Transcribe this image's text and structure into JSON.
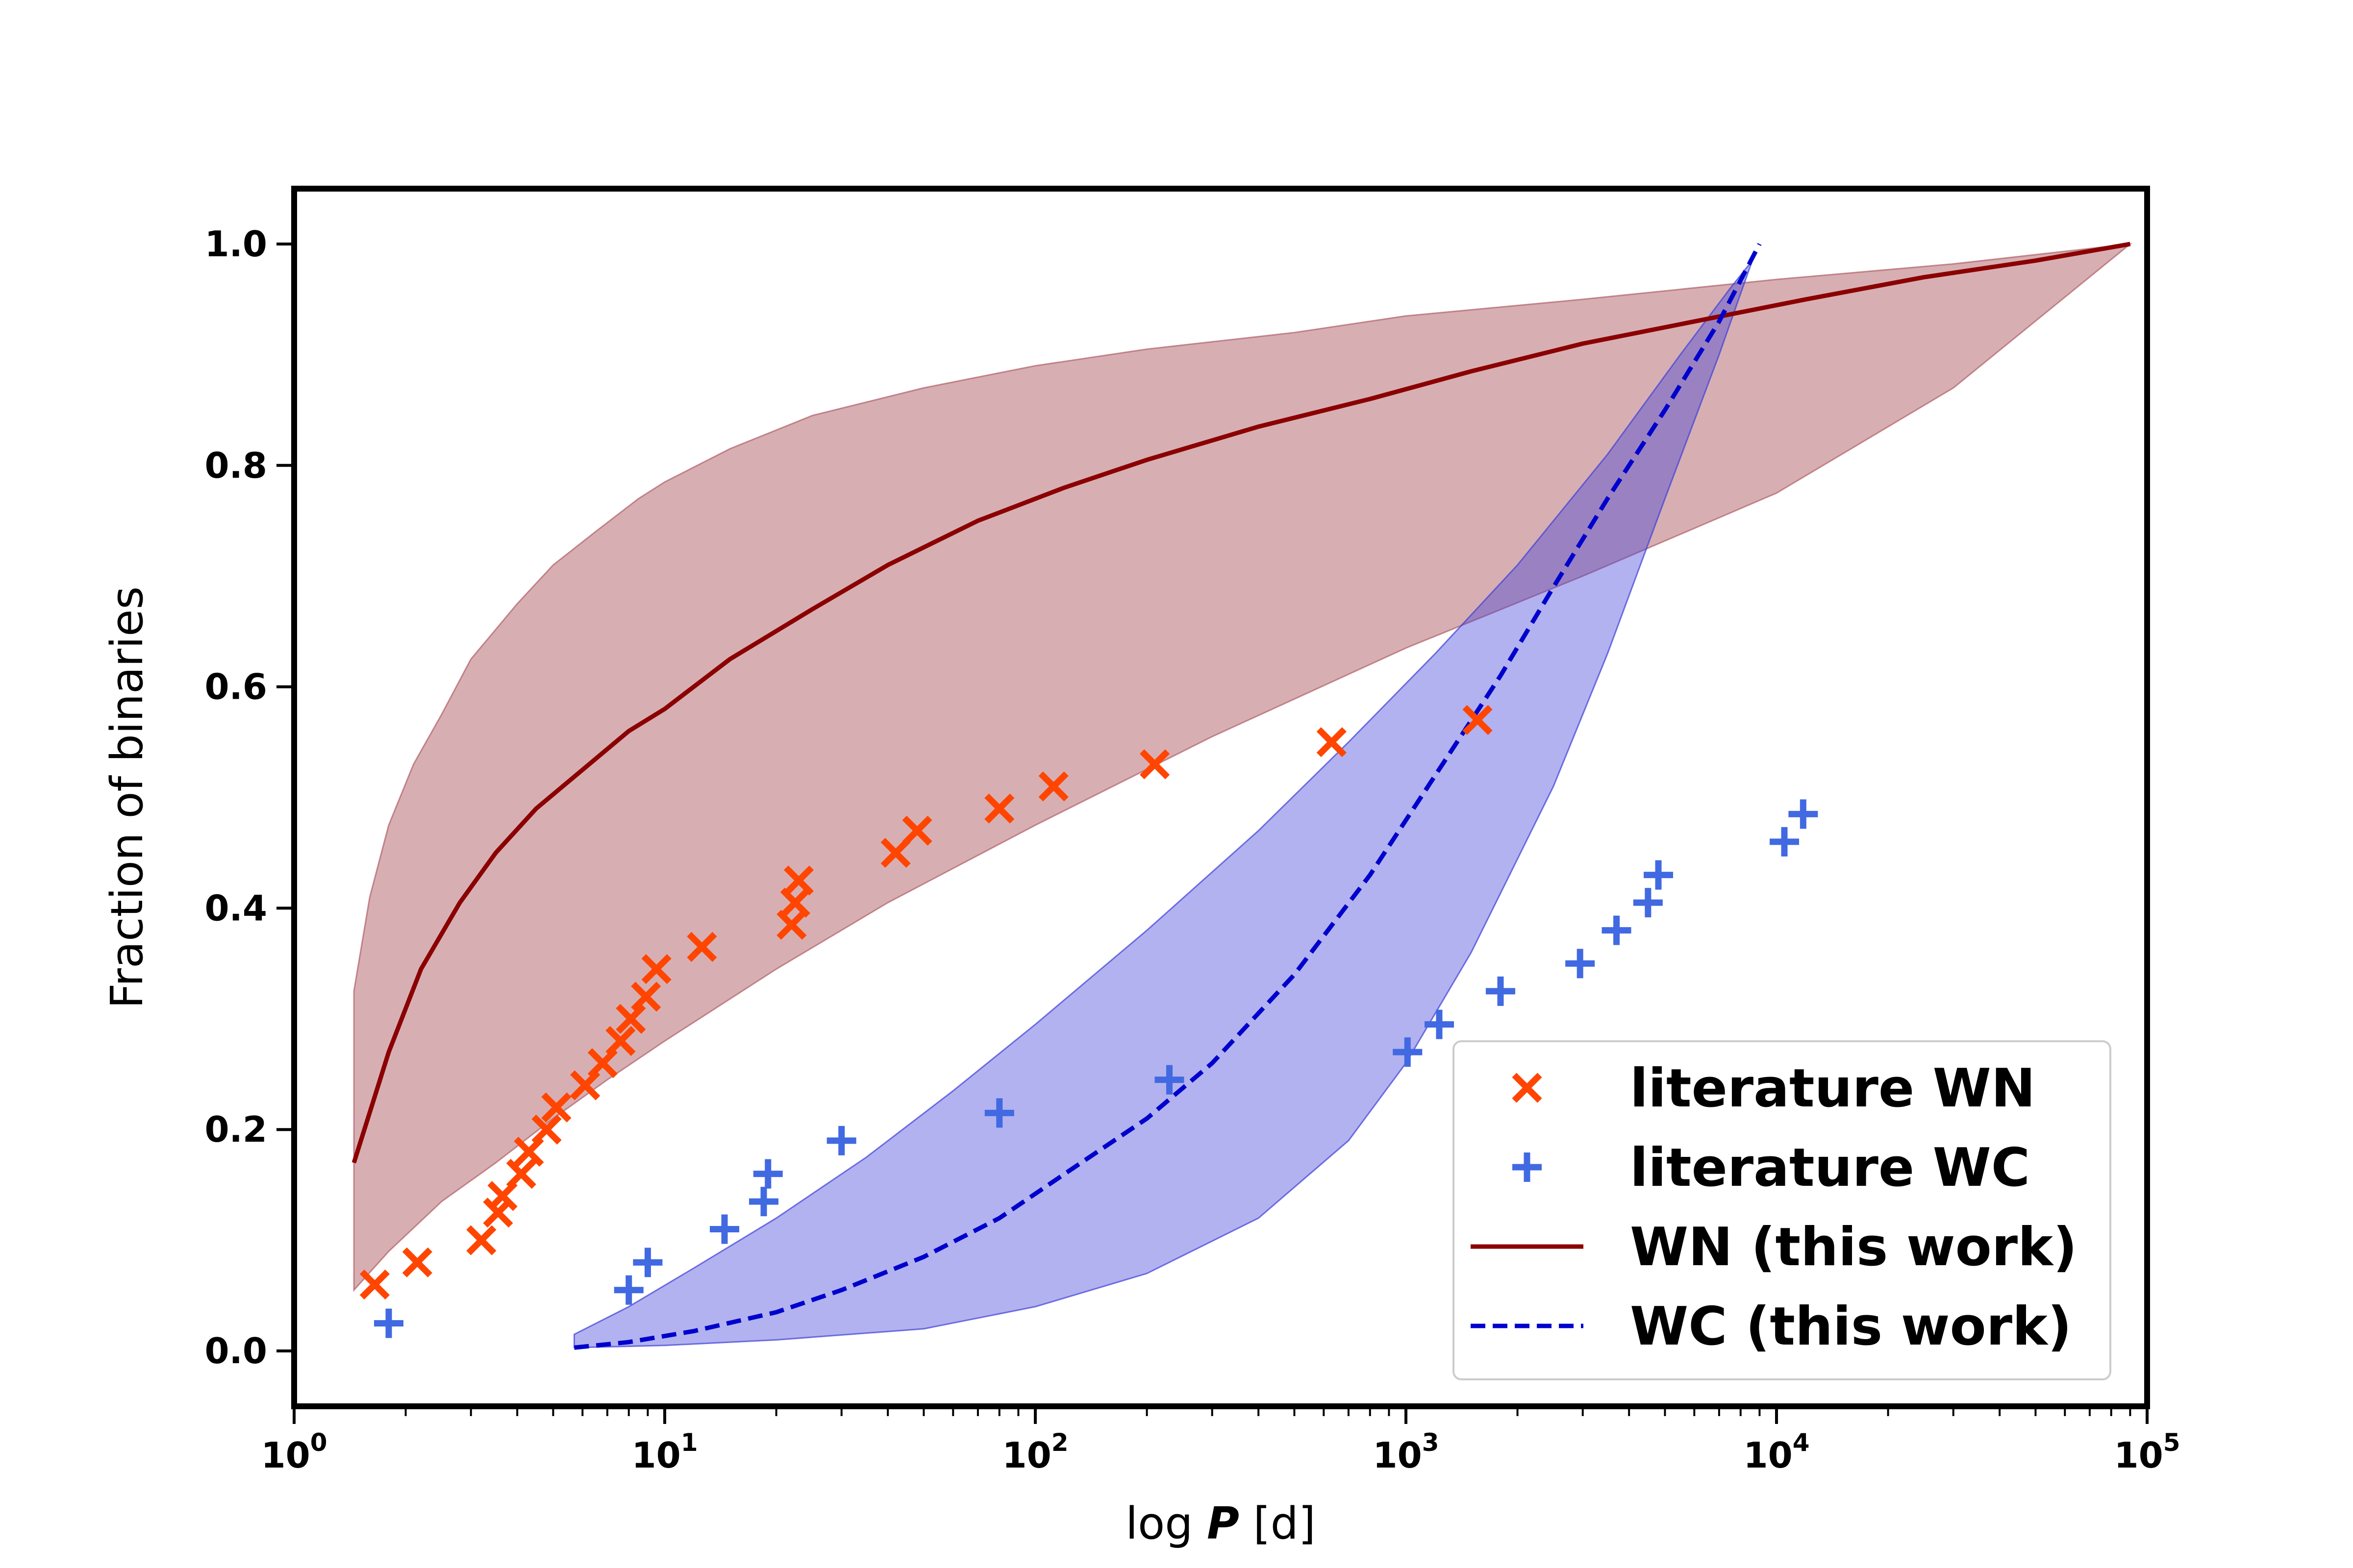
{
  "chart_data": {
    "type": "scatter",
    "xlabel_prefix": "log ",
    "xlabel_var": "P",
    "xlabel_unit": " [d]",
    "ylabel": "Fraction of binaries",
    "xscale": "log",
    "xlim": [
      1,
      100000
    ],
    "ylim": [
      -0.05,
      1.05
    ],
    "x_ticks": [
      {
        "base": "10",
        "exp": "0",
        "value": 1
      },
      {
        "base": "10",
        "exp": "1",
        "value": 10
      },
      {
        "base": "10",
        "exp": "2",
        "value": 100
      },
      {
        "base": "10",
        "exp": "3",
        "value": 1000
      },
      {
        "base": "10",
        "exp": "4",
        "value": 10000
      },
      {
        "base": "10",
        "exp": "5",
        "value": 100000
      }
    ],
    "y_ticks": [
      "0.0",
      "0.2",
      "0.4",
      "0.6",
      "0.8",
      "1.0"
    ],
    "legend_position": "lower-right",
    "series": [
      {
        "name": "literature WN",
        "kind": "scatter",
        "marker": "x",
        "color": "#FF4500",
        "points": [
          [
            1.65,
            0.06
          ],
          [
            2.15,
            0.08
          ],
          [
            3.2,
            0.1
          ],
          [
            3.55,
            0.125
          ],
          [
            3.65,
            0.14
          ],
          [
            4.1,
            0.16
          ],
          [
            4.3,
            0.18
          ],
          [
            4.8,
            0.2
          ],
          [
            5.1,
            0.22
          ],
          [
            6.1,
            0.24
          ],
          [
            6.8,
            0.26
          ],
          [
            7.6,
            0.28
          ],
          [
            8.1,
            0.3
          ],
          [
            8.9,
            0.32
          ],
          [
            9.5,
            0.345
          ],
          [
            12.6,
            0.365
          ],
          [
            22,
            0.385
          ],
          [
            22.5,
            0.405
          ],
          [
            23,
            0.425
          ],
          [
            42,
            0.45
          ],
          [
            48,
            0.47
          ],
          [
            80,
            0.49
          ],
          [
            112,
            0.51
          ],
          [
            210,
            0.53
          ],
          [
            630,
            0.55
          ],
          [
            1560,
            0.57
          ]
        ]
      },
      {
        "name": "literature WC",
        "kind": "scatter",
        "marker": "+",
        "color": "#4169E1",
        "points": [
          [
            1.8,
            0.025
          ],
          [
            8.0,
            0.055
          ],
          [
            9.0,
            0.08
          ],
          [
            14.5,
            0.11
          ],
          [
            18.5,
            0.135
          ],
          [
            19.0,
            0.16
          ],
          [
            30,
            0.19
          ],
          [
            80,
            0.215
          ],
          [
            230,
            0.245
          ],
          [
            1010,
            0.27
          ],
          [
            1230,
            0.295
          ],
          [
            1800,
            0.325
          ],
          [
            2950,
            0.35
          ],
          [
            3700,
            0.38
          ],
          [
            4500,
            0.405
          ],
          [
            4800,
            0.43
          ],
          [
            10500,
            0.46
          ],
          [
            11800,
            0.485
          ]
        ]
      },
      {
        "name": "WN (this work)",
        "kind": "line",
        "style": "solid",
        "color": "#8B0000",
        "points": [
          [
            1.45,
            0.17
          ],
          [
            1.8,
            0.27
          ],
          [
            2.2,
            0.345
          ],
          [
            2.8,
            0.405
          ],
          [
            3.5,
            0.45
          ],
          [
            4.5,
            0.49
          ],
          [
            6,
            0.525
          ],
          [
            8,
            0.56
          ],
          [
            10,
            0.58
          ],
          [
            15,
            0.625
          ],
          [
            25,
            0.67
          ],
          [
            40,
            0.71
          ],
          [
            70,
            0.75
          ],
          [
            120,
            0.78
          ],
          [
            200,
            0.805
          ],
          [
            400,
            0.835
          ],
          [
            800,
            0.86
          ],
          [
            1500,
            0.885
          ],
          [
            3000,
            0.91
          ],
          [
            6000,
            0.93
          ],
          [
            12000,
            0.95
          ],
          [
            25000,
            0.97
          ],
          [
            50000,
            0.985
          ],
          [
            90000,
            1.0
          ]
        ]
      },
      {
        "name": "WC (this work)",
        "kind": "line",
        "style": "dashed",
        "color": "#0000CD",
        "points": [
          [
            5.7,
            0.003
          ],
          [
            8,
            0.008
          ],
          [
            12,
            0.018
          ],
          [
            20,
            0.035
          ],
          [
            30,
            0.055
          ],
          [
            50,
            0.085
          ],
          [
            80,
            0.12
          ],
          [
            120,
            0.16
          ],
          [
            200,
            0.21
          ],
          [
            300,
            0.26
          ],
          [
            500,
            0.34
          ],
          [
            800,
            0.43
          ],
          [
            1200,
            0.52
          ],
          [
            1800,
            0.61
          ],
          [
            2500,
            0.69
          ],
          [
            3500,
            0.77
          ],
          [
            5000,
            0.85
          ],
          [
            7000,
            0.93
          ],
          [
            9000,
            1.0
          ]
        ]
      }
    ],
    "bands": [
      {
        "for": "WN (this work)",
        "color": "#B06068",
        "opacity": 0.5,
        "upper": [
          [
            1.45,
            0.325
          ],
          [
            1.6,
            0.41
          ],
          [
            1.8,
            0.475
          ],
          [
            2.1,
            0.53
          ],
          [
            2.5,
            0.575
          ],
          [
            3,
            0.625
          ],
          [
            4,
            0.675
          ],
          [
            5,
            0.71
          ],
          [
            6.5,
            0.74
          ],
          [
            8.5,
            0.77
          ],
          [
            10,
            0.785
          ],
          [
            15,
            0.815
          ],
          [
            25,
            0.845
          ],
          [
            50,
            0.87
          ],
          [
            100,
            0.89
          ],
          [
            200,
            0.905
          ],
          [
            500,
            0.92
          ],
          [
            1000,
            0.935
          ],
          [
            3000,
            0.95
          ],
          [
            10000,
            0.968
          ],
          [
            30000,
            0.982
          ],
          [
            90000,
            1.0
          ]
        ],
        "lower": [
          [
            1.45,
            0.055
          ],
          [
            1.8,
            0.09
          ],
          [
            2.5,
            0.135
          ],
          [
            3.5,
            0.17
          ],
          [
            5,
            0.21
          ],
          [
            7,
            0.245
          ],
          [
            10,
            0.28
          ],
          [
            20,
            0.345
          ],
          [
            40,
            0.405
          ],
          [
            100,
            0.475
          ],
          [
            300,
            0.555
          ],
          [
            1000,
            0.635
          ],
          [
            3000,
            0.7
          ],
          [
            10000,
            0.775
          ],
          [
            30000,
            0.87
          ],
          [
            90000,
            1.0
          ]
        ]
      },
      {
        "for": "WC (this work)",
        "color": "#3F3FD9",
        "opacity": 0.4,
        "upper": [
          [
            5.7,
            0.015
          ],
          [
            8,
            0.04
          ],
          [
            12,
            0.075
          ],
          [
            20,
            0.12
          ],
          [
            35,
            0.175
          ],
          [
            60,
            0.235
          ],
          [
            100,
            0.295
          ],
          [
            200,
            0.38
          ],
          [
            400,
            0.47
          ],
          [
            700,
            0.55
          ],
          [
            1200,
            0.63
          ],
          [
            2000,
            0.71
          ],
          [
            3500,
            0.81
          ],
          [
            5500,
            0.9
          ],
          [
            7500,
            0.96
          ],
          [
            8600,
            0.985
          ]
        ],
        "lower": [
          [
            5.7,
            0.003
          ],
          [
            10,
            0.005
          ],
          [
            20,
            0.01
          ],
          [
            50,
            0.02
          ],
          [
            100,
            0.04
          ],
          [
            200,
            0.07
          ],
          [
            400,
            0.12
          ],
          [
            700,
            0.19
          ],
          [
            1000,
            0.26
          ],
          [
            1500,
            0.36
          ],
          [
            2500,
            0.51
          ],
          [
            3500,
            0.63
          ],
          [
            5000,
            0.77
          ],
          [
            7000,
            0.9
          ],
          [
            8600,
            0.985
          ]
        ]
      }
    ]
  }
}
